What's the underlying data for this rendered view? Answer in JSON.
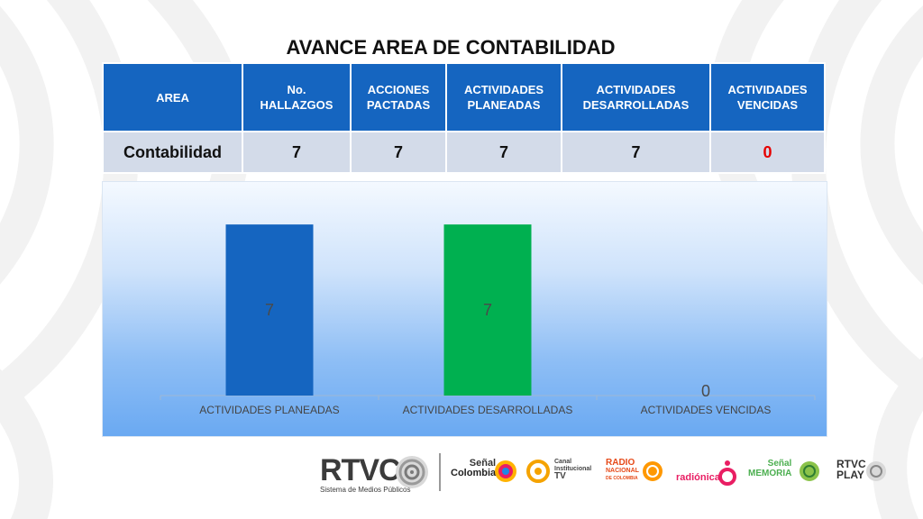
{
  "title": "AVANCE AREA DE CONTABILIDAD",
  "table": {
    "headers": [
      "AREA",
      "No.\nHALLAZGOS",
      "ACCIONES\nPACTADAS",
      "ACTIVIDADES\nPLANEADAS",
      "ACTIVIDADES\nDESARROLLADAS",
      "ACTIVIDADES\nVENCIDAS"
    ],
    "row": [
      "Contabilidad",
      "7",
      "7",
      "7",
      "7",
      "0"
    ]
  },
  "colors": {
    "header_blue": "#1565c0",
    "row_bg": "#d3dbe9",
    "alert_red": "#e60000",
    "bar_blue": "#1565c0",
    "bar_green": "#00b050"
  },
  "chart_data": {
    "type": "bar",
    "categories": [
      "ACTIVIDADES PLANEADAS",
      "ACTIVIDADES DESARROLLADAS",
      "ACTIVIDADES VENCIDAS"
    ],
    "values": [
      7,
      7,
      0
    ],
    "bar_colors": [
      "#1565c0",
      "#00b050",
      "#1565c0"
    ],
    "data_labels": [
      "7",
      "7",
      "0"
    ],
    "title": "",
    "xlabel": "",
    "ylabel": "",
    "ylim": [
      0,
      8
    ],
    "grid": false,
    "legend": "none"
  },
  "footer": {
    "rtvc": "RTVC",
    "rtvc_sub": "Sistema de Medios Públicos",
    "senal_colombia_top": "Señal",
    "senal_colombia_bottom": "Colombia",
    "canal_institucional_top": "Canal",
    "canal_institucional_mid": "Institucional",
    "canal_institucional_tv": "TV",
    "radio_nacional_top": "RADIO",
    "radio_nacional_mid": "NACIONAL",
    "radio_nacional_bottom": "DE COLOMBIA",
    "radionica": "radiónica",
    "senal_memoria_top": "Señal",
    "senal_memoria_bottom": "MEMORIA",
    "rtvc_play_top": "RTVC",
    "rtvc_play_bottom": "PLAY"
  }
}
